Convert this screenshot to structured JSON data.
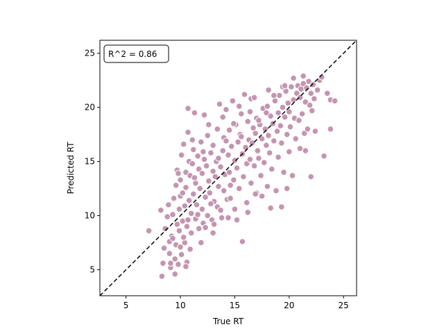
{
  "chart_data": {
    "type": "scatter",
    "title": "",
    "xlabel": "True RT",
    "ylabel": "Predicted RT",
    "xlim": [
      2.6,
      26.2
    ],
    "ylim": [
      2.6,
      26.2
    ],
    "xticks": [
      5,
      10,
      15,
      20,
      25
    ],
    "yticks": [
      5,
      10,
      15,
      20,
      25
    ],
    "grid": false,
    "annotation": "R^2 = 0.86",
    "annotation_placement": "top-left",
    "reference_line": {
      "style": "dashed",
      "color": "#000000",
      "from": [
        2.6,
        2.6
      ],
      "to": [
        26.2,
        26.2
      ]
    },
    "marker_color": "#c495b0",
    "marker_edge_color": "#ffffff",
    "series": [
      {
        "points": [
          [
            7.1,
            8.6
          ],
          [
            8.2,
            10.5
          ],
          [
            8.3,
            4.4
          ],
          [
            8.4,
            5.6
          ],
          [
            8.5,
            7.0
          ],
          [
            8.6,
            8.8
          ],
          [
            8.8,
            9.9
          ],
          [
            8.9,
            11.0
          ],
          [
            9.0,
            6.5
          ],
          [
            9.0,
            7.6
          ],
          [
            9.1,
            5.2
          ],
          [
            9.2,
            8.1
          ],
          [
            9.3,
            10.1
          ],
          [
            9.4,
            11.6
          ],
          [
            9.5,
            4.6
          ],
          [
            9.5,
            6.0
          ],
          [
            9.6,
            7.3
          ],
          [
            9.6,
            12.8
          ],
          [
            9.7,
            9.2
          ],
          [
            9.7,
            14.2
          ],
          [
            9.8,
            5.5
          ],
          [
            9.9,
            8.6
          ],
          [
            9.9,
            10.6
          ],
          [
            10.0,
            11.8
          ],
          [
            10.0,
            13.3
          ],
          [
            10.1,
            6.4
          ],
          [
            10.1,
            15.6
          ],
          [
            10.2,
            9.5
          ],
          [
            10.2,
            12.1
          ],
          [
            10.3,
            16.6
          ],
          [
            10.4,
            7.5
          ],
          [
            10.4,
            10.9
          ],
          [
            10.5,
            14.0
          ],
          [
            10.5,
            12.6
          ],
          [
            10.6,
            5.7
          ],
          [
            10.6,
            9.0
          ],
          [
            10.7,
            17.7
          ],
          [
            10.7,
            19.9
          ],
          [
            10.8,
            11.4
          ],
          [
            10.8,
            15.0
          ],
          [
            10.9,
            13.7
          ],
          [
            11.0,
            8.4
          ],
          [
            11.0,
            10.2
          ],
          [
            11.1,
            14.8
          ],
          [
            11.2,
            12.0
          ],
          [
            11.2,
            16.1
          ],
          [
            11.3,
            19.5
          ],
          [
            11.4,
            9.7
          ],
          [
            11.4,
            13.0
          ],
          [
            11.5,
            11.0
          ],
          [
            11.6,
            15.5
          ],
          [
            11.7,
            8.8
          ],
          [
            11.7,
            14.3
          ],
          [
            11.8,
            12.5
          ],
          [
            11.9,
            16.8
          ],
          [
            12.0,
            10.6
          ],
          [
            12.0,
            13.9
          ],
          [
            12.1,
            9.3
          ],
          [
            12.2,
            15.2
          ],
          [
            12.2,
            19.3
          ],
          [
            12.3,
            11.7
          ],
          [
            12.4,
            14.6
          ],
          [
            12.5,
            17.4
          ],
          [
            12.5,
            10.0
          ],
          [
            12.6,
            13.2
          ],
          [
            12.7,
            12.1
          ],
          [
            12.8,
            15.8
          ],
          [
            12.9,
            9.6
          ],
          [
            13.0,
            14.1
          ],
          [
            13.0,
            16.5
          ],
          [
            13.1,
            11.3
          ],
          [
            13.2,
            13.6
          ],
          [
            13.3,
            15.0
          ],
          [
            13.4,
            10.8
          ],
          [
            13.4,
            18.0
          ],
          [
            13.5,
            12.7
          ],
          [
            13.6,
            20.3
          ],
          [
            13.7,
            14.5
          ],
          [
            13.8,
            9.8
          ],
          [
            13.9,
            16.0
          ],
          [
            14.0,
            12.3
          ],
          [
            14.0,
            17.2
          ],
          [
            14.1,
            13.8
          ],
          [
            14.2,
            19.8
          ],
          [
            14.3,
            11.5
          ],
          [
            14.4,
            15.6
          ],
          [
            14.5,
            14.0
          ],
          [
            14.5,
            17.9
          ],
          [
            14.6,
            12.8
          ],
          [
            14.7,
            16.4
          ],
          [
            14.8,
            20.6
          ],
          [
            14.9,
            13.3
          ],
          [
            15.0,
            15.1
          ],
          [
            15.0,
            10.6
          ],
          [
            15.1,
            18.4
          ],
          [
            15.2,
            14.4
          ],
          [
            15.3,
            16.8
          ],
          [
            15.4,
            12.5
          ],
          [
            15.5,
            17.5
          ],
          [
            15.6,
            19.4
          ],
          [
            15.7,
            7.6
          ],
          [
            15.7,
            15.7
          ],
          [
            15.8,
            13.6
          ],
          [
            15.9,
            21.2
          ],
          [
            16.0,
            16.3
          ],
          [
            16.1,
            14.8
          ],
          [
            16.1,
            11.2
          ],
          [
            16.2,
            18.7
          ],
          [
            16.3,
            17.0
          ],
          [
            16.4,
            15.2
          ],
          [
            16.5,
            20.8
          ],
          [
            16.5,
            13.0
          ],
          [
            16.6,
            16.7
          ],
          [
            16.7,
            18.1
          ],
          [
            16.8,
            14.6
          ],
          [
            16.9,
            17.6
          ],
          [
            17.0,
            12.1
          ],
          [
            17.0,
            19.0
          ],
          [
            17.1,
            16.0
          ],
          [
            17.2,
            15.3
          ],
          [
            17.3,
            18.4
          ],
          [
            17.4,
            13.7
          ],
          [
            17.5,
            17.1
          ],
          [
            17.6,
            19.9
          ],
          [
            17.7,
            14.9
          ],
          [
            17.8,
            18.0
          ],
          [
            17.9,
            16.5
          ],
          [
            18.0,
            12.7
          ],
          [
            18.0,
            20.1
          ],
          [
            18.1,
            17.4
          ],
          [
            18.2,
            15.8
          ],
          [
            18.3,
            19.2
          ],
          [
            18.4,
            14.3
          ],
          [
            18.5,
            18.5
          ],
          [
            18.6,
            16.9
          ],
          [
            18.7,
            20.6
          ],
          [
            18.8,
            12.3
          ],
          [
            18.9,
            17.8
          ],
          [
            19.0,
            19.5
          ],
          [
            19.0,
            15.4
          ],
          [
            19.1,
            21.1
          ],
          [
            19.2,
            18.3
          ],
          [
            19.3,
            16.7
          ],
          [
            19.4,
            20.0
          ],
          [
            19.5,
            14.0
          ],
          [
            19.6,
            19.1
          ],
          [
            19.7,
            21.5
          ],
          [
            19.8,
            17.5
          ],
          [
            19.9,
            20.4
          ],
          [
            20.0,
            15.9
          ],
          [
            20.0,
            19.6
          ],
          [
            20.1,
            18.2
          ],
          [
            20.2,
            21.9
          ],
          [
            20.3,
            13.7
          ],
          [
            20.4,
            20.7
          ],
          [
            20.5,
            19.0
          ],
          [
            20.6,
            17.1
          ],
          [
            20.7,
            21.3
          ],
          [
            20.8,
            22.0
          ],
          [
            20.9,
            18.8
          ],
          [
            21.0,
            16.2
          ],
          [
            21.0,
            20.9
          ],
          [
            21.1,
            21.7
          ],
          [
            21.2,
            19.4
          ],
          [
            21.3,
            22.2
          ],
          [
            21.4,
            17.6
          ],
          [
            21.5,
            20.5
          ],
          [
            21.6,
            21.8
          ],
          [
            21.7,
            18.0
          ],
          [
            21.8,
            22.4
          ],
          [
            21.9,
            20.2
          ],
          [
            22.0,
            13.6
          ],
          [
            22.0,
            21.3
          ],
          [
            22.1,
            19.7
          ],
          [
            22.2,
            22.1
          ],
          [
            22.4,
            17.8
          ],
          [
            22.6,
            21.6
          ],
          [
            22.8,
            22.5
          ],
          [
            23.0,
            22.8
          ],
          [
            23.2,
            15.5
          ],
          [
            23.5,
            21.3
          ],
          [
            23.8,
            20.7
          ],
          [
            23.8,
            18.0
          ],
          [
            24.2,
            20.6
          ],
          [
            9.8,
            13.9
          ],
          [
            10.3,
            8.0
          ],
          [
            10.9,
            6.9
          ],
          [
            11.6,
            10.1
          ],
          [
            12.3,
            8.9
          ],
          [
            13.1,
            9.2
          ],
          [
            13.7,
            10.5
          ],
          [
            14.6,
            11.6
          ],
          [
            15.2,
            9.6
          ],
          [
            16.2,
            10.3
          ],
          [
            16.9,
            12.0
          ],
          [
            17.5,
            11.8
          ],
          [
            18.3,
            10.7
          ],
          [
            19.3,
            10.8
          ],
          [
            19.8,
            12.5
          ],
          [
            21.5,
            16.0
          ],
          [
            9.3,
            7.9
          ],
          [
            10.0,
            7.1
          ],
          [
            10.7,
            9.6
          ],
          [
            11.3,
            13.5
          ],
          [
            12.1,
            15.9
          ],
          [
            12.8,
            11.1
          ],
          [
            13.5,
            15.3
          ],
          [
            14.2,
            16.9
          ],
          [
            14.9,
            18.5
          ],
          [
            15.6,
            17.3
          ],
          [
            16.4,
            19.6
          ],
          [
            17.2,
            18.8
          ],
          [
            17.9,
            19.5
          ],
          [
            18.6,
            21.1
          ],
          [
            19.4,
            21.9
          ],
          [
            20.4,
            22.7
          ],
          [
            21.3,
            22.9
          ],
          [
            22.3,
            20.8
          ],
          [
            14.4,
            9.8
          ],
          [
            13.0,
            8.4
          ],
          [
            11.9,
            7.5
          ],
          [
            10.5,
            5.3
          ],
          [
            9.1,
            5.6
          ],
          [
            11.1,
            17.0
          ],
          [
            12.6,
            18.4
          ],
          [
            13.9,
            19.1
          ],
          [
            15.4,
            20.1
          ],
          [
            16.8,
            20.9
          ],
          [
            18.1,
            21.6
          ],
          [
            19.6,
            22.0
          ]
        ]
      }
    ]
  }
}
